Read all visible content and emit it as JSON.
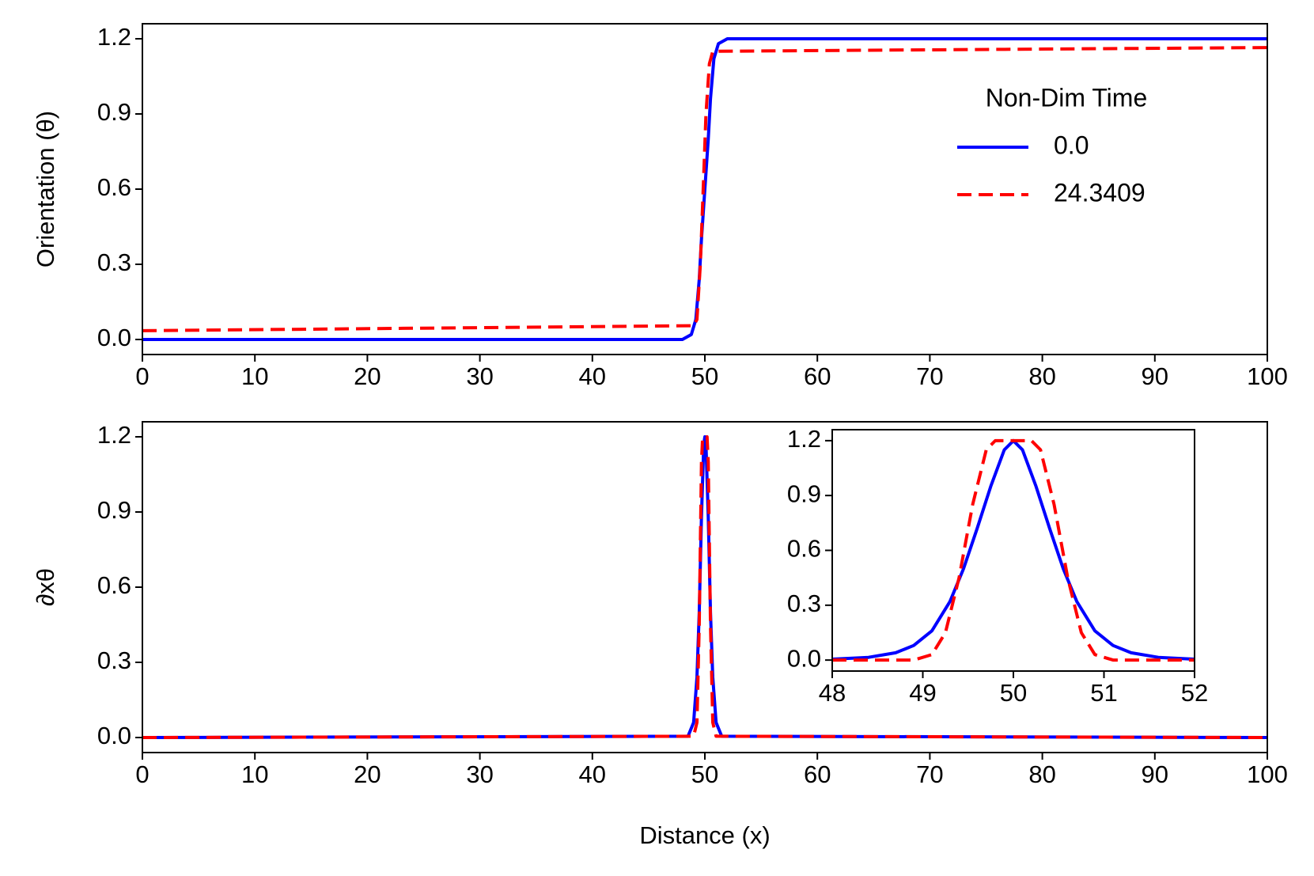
{
  "figure": {
    "legend": {
      "title": "Non-Dim Time",
      "entries": [
        {
          "label": "0.0",
          "color": "#0000ff",
          "style": "solid"
        },
        {
          "label": "24.3409",
          "color": "#ff0000",
          "style": "dashed"
        }
      ]
    }
  },
  "chart_data": [
    {
      "type": "line",
      "title": "",
      "xlabel": "",
      "ylabel": "Orientation (θ)",
      "xlim": [
        0,
        100
      ],
      "ylim": [
        -0.06,
        1.26
      ],
      "xticks": [
        0,
        10,
        20,
        30,
        40,
        50,
        60,
        70,
        80,
        90,
        100
      ],
      "xtick_labels": [
        "0",
        "10",
        "20",
        "30",
        "40",
        "50",
        "60",
        "70",
        "80",
        "90",
        "100"
      ],
      "yticks": [
        0.0,
        0.3,
        0.6,
        0.9,
        1.2
      ],
      "ytick_labels": [
        "0.0",
        "0.3",
        "0.6",
        "0.9",
        "1.2"
      ],
      "legend_placement": "upper-right",
      "series": [
        {
          "name": "0.0",
          "color": "#0000ff",
          "style": "solid",
          "x": [
            0,
            48,
            48.8,
            49.2,
            49.5,
            49.7,
            50.0,
            50.3,
            50.5,
            50.8,
            51.2,
            52,
            100
          ],
          "y": [
            0.0,
            0.0,
            0.02,
            0.08,
            0.24,
            0.4,
            0.6,
            0.8,
            0.96,
            1.12,
            1.18,
            1.2,
            1.2
          ]
        },
        {
          "name": "24.3409",
          "color": "#ff0000",
          "style": "dashed",
          "x": [
            0,
            49.0,
            49.3,
            49.6,
            49.85,
            50.1,
            50.4,
            50.7,
            100
          ],
          "y": [
            0.035,
            0.055,
            0.08,
            0.3,
            0.6,
            0.9,
            1.1,
            1.15,
            1.165
          ]
        }
      ]
    },
    {
      "type": "line",
      "title": "",
      "xlabel": "Distance (x)",
      "ylabel": "∂xθ",
      "xlim": [
        0,
        100
      ],
      "ylim": [
        -0.06,
        1.26
      ],
      "xticks": [
        0,
        10,
        20,
        30,
        40,
        50,
        60,
        70,
        80,
        90,
        100
      ],
      "xtick_labels": [
        "0",
        "10",
        "20",
        "30",
        "40",
        "50",
        "60",
        "70",
        "80",
        "90",
        "100"
      ],
      "yticks": [
        0.0,
        0.3,
        0.6,
        0.9,
        1.2
      ],
      "ytick_labels": [
        "0.0",
        "0.3",
        "0.6",
        "0.9",
        "1.2"
      ],
      "series": [
        {
          "name": "0.0",
          "color": "#0000ff",
          "style": "solid",
          "x": [
            0,
            48.5,
            49.0,
            49.3,
            49.5,
            49.7,
            49.9,
            50.0,
            50.1,
            50.3,
            50.5,
            50.7,
            51.0,
            51.5,
            100
          ],
          "y": [
            0,
            0.005,
            0.06,
            0.24,
            0.5,
            0.88,
            1.17,
            1.2,
            1.17,
            0.88,
            0.5,
            0.24,
            0.06,
            0.005,
            0
          ]
        },
        {
          "name": "24.3409",
          "color": "#ff0000",
          "style": "dashed",
          "x": [
            0,
            49.0,
            49.3,
            49.5,
            49.7,
            49.8,
            50.0,
            50.2,
            50.3,
            50.5,
            50.7,
            51.0,
            100
          ],
          "y": [
            0,
            0.005,
            0.06,
            0.45,
            1.1,
            1.2,
            1.2,
            1.2,
            1.1,
            0.45,
            0.06,
            0.005,
            0
          ]
        }
      ],
      "inset": {
        "xlim": [
          48,
          52
        ],
        "ylim": [
          -0.06,
          1.26
        ],
        "xticks": [
          48,
          49,
          50,
          51,
          52
        ],
        "xtick_labels": [
          "48",
          "49",
          "50",
          "51",
          "52"
        ],
        "yticks": [
          0.0,
          0.3,
          0.6,
          0.9,
          1.2
        ],
        "ytick_labels": [
          "0.0",
          "0.3",
          "0.6",
          "0.9",
          "1.2"
        ],
        "series": [
          {
            "name": "0.0",
            "color": "#0000ff",
            "style": "solid",
            "x": [
              48.0,
              48.4,
              48.7,
              48.9,
              49.1,
              49.3,
              49.45,
              49.6,
              49.75,
              49.9,
              50.0,
              50.1,
              50.25,
              50.4,
              50.55,
              50.7,
              50.9,
              51.1,
              51.3,
              51.6,
              52.0
            ],
            "y": [
              0.005,
              0.015,
              0.04,
              0.08,
              0.16,
              0.32,
              0.5,
              0.72,
              0.95,
              1.15,
              1.2,
              1.15,
              0.95,
              0.72,
              0.5,
              0.32,
              0.16,
              0.08,
              0.04,
              0.015,
              0.005
            ]
          },
          {
            "name": "24.3409",
            "color": "#ff0000",
            "style": "dashed",
            "x": [
              48.0,
              48.9,
              49.1,
              49.25,
              49.4,
              49.55,
              49.7,
              49.8,
              49.9,
              50.0,
              50.1,
              50.2,
              50.3,
              50.45,
              50.6,
              50.75,
              50.9,
              51.1,
              52.0
            ],
            "y": [
              0.0,
              0.0,
              0.03,
              0.15,
              0.45,
              0.85,
              1.15,
              1.2,
              1.2,
              1.2,
              1.2,
              1.2,
              1.15,
              0.85,
              0.45,
              0.15,
              0.03,
              0.0,
              0.0
            ]
          }
        ]
      }
    }
  ]
}
